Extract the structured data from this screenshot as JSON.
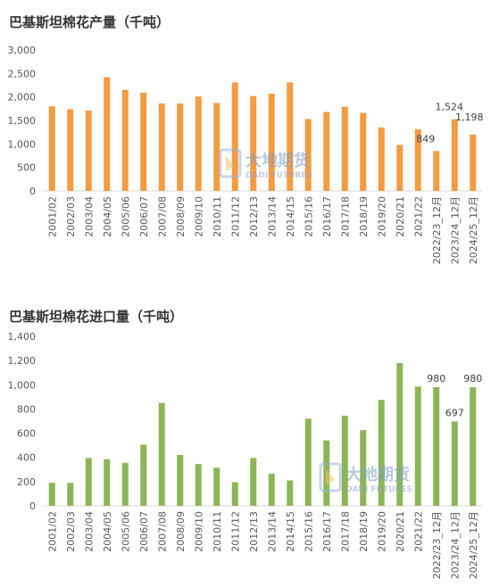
{
  "watermark": {
    "cn": "大地期货",
    "en": "DADI FUTURES"
  },
  "chart_data": [
    {
      "type": "bar",
      "title": "巴基斯坦棉花产量（千吨）",
      "color": "#F59B42",
      "ylim": [
        0,
        3000
      ],
      "yticks": [
        "0",
        "500",
        "1,000",
        "1,500",
        "2,000",
        "2,500",
        "3,000"
      ],
      "grid": false,
      "categories": [
        "2001/02",
        "2002/03",
        "2003/04",
        "2004/05",
        "2005/06",
        "2006/07",
        "2007/08",
        "2008/09",
        "2009/10",
        "2010/11",
        "2011/12",
        "2012/13",
        "2013/14",
        "2014/15",
        "2015/16",
        "2016/17",
        "2017/18",
        "2018/19",
        "2019/20",
        "2020/21",
        "2021/22",
        "2022/23_12月",
        "2023/24_12月",
        "2024/25_12月"
      ],
      "values": [
        1800,
        1740,
        1710,
        2420,
        2150,
        2090,
        1860,
        1860,
        2010,
        1870,
        2310,
        2020,
        2070,
        2310,
        1530,
        1680,
        1790,
        1660,
        1350,
        980,
        1310,
        849,
        1524,
        1198
      ],
      "data_labels": {
        "21": "849",
        "22": "1,524",
        "23": "1,198"
      }
    },
    {
      "type": "bar",
      "title": "巴基斯坦棉花进口量（千吨）",
      "color": "#8DB556",
      "ylim": [
        0,
        1400
      ],
      "yticks": [
        "0",
        "200",
        "400",
        "600",
        "800",
        "1,000",
        "1,200",
        "1,400"
      ],
      "grid": false,
      "categories": [
        "2001/02",
        "2002/03",
        "2003/04",
        "2004/05",
        "2005/06",
        "2006/07",
        "2007/08",
        "2008/09",
        "2009/10",
        "2010/11",
        "2011/12",
        "2012/13",
        "2013/14",
        "2014/15",
        "2015/16",
        "2016/17",
        "2017/18",
        "2018/19",
        "2019/20",
        "2020/21",
        "2021/22",
        "2022/23_12月",
        "2023/24_12月",
        "2024/25_12月"
      ],
      "values": [
        190,
        190,
        395,
        385,
        355,
        505,
        850,
        420,
        345,
        315,
        195,
        395,
        265,
        210,
        720,
        540,
        745,
        625,
        875,
        1180,
        985,
        980,
        697,
        980
      ],
      "data_labels": {
        "21": "980",
        "22": "697",
        "23": "980"
      }
    }
  ]
}
